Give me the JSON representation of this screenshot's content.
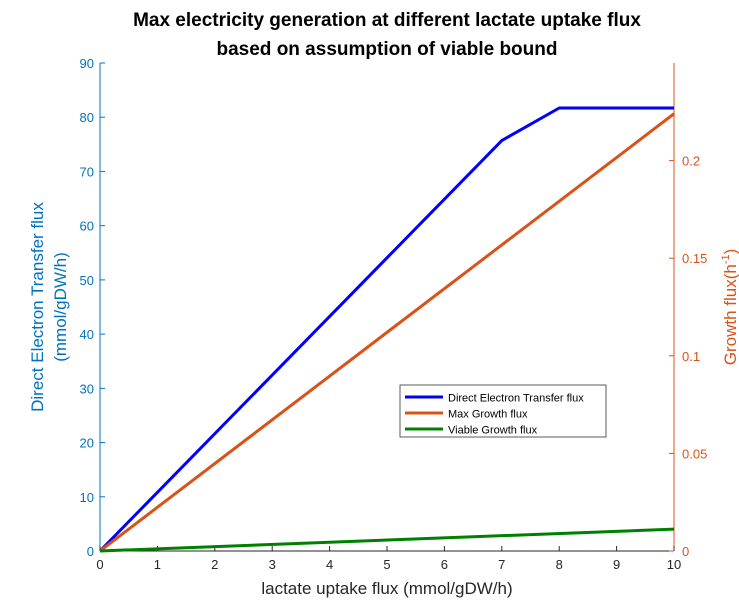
{
  "chart_data": {
    "type": "line",
    "title": [
      "Max electricity generation at different lactate uptake flux",
      "based on assumption of viable bound"
    ],
    "xlabel": "lactate uptake flux (mmol/gDW/h)",
    "ylabel_left": [
      "Direct Electron Transfer flux",
      "(mmol/gDW/h)"
    ],
    "ylabel_right": "Growth flux(h",
    "ylabel_right_sup": "-1",
    "ylabel_right_close": ")",
    "xlim": [
      0,
      10
    ],
    "ylim_left": [
      0,
      90
    ],
    "ylim_right": [
      0,
      0.25
    ],
    "xticks": [
      "0",
      "1",
      "2",
      "3",
      "4",
      "5",
      "6",
      "7",
      "8",
      "9",
      "10"
    ],
    "yticks_left": [
      "0",
      "10",
      "20",
      "30",
      "40",
      "50",
      "60",
      "70",
      "80",
      "90"
    ],
    "yticks_right": [
      "0",
      "0.05",
      "0.1",
      "0.15",
      "0.2"
    ],
    "grid": false,
    "legend_position": "center-right",
    "series": [
      {
        "name": "Direct Electron Transfer flux",
        "axis": "left",
        "color": "#0000FF",
        "x": [
          0,
          7,
          8,
          10
        ],
        "y": [
          0,
          75.7,
          81.7,
          81.7
        ]
      },
      {
        "name": "Max Growth flux",
        "axis": "right",
        "color": "#D95319",
        "x": [
          0,
          10
        ],
        "y": [
          0,
          0.224
        ]
      },
      {
        "name": "Viable Growth flux",
        "axis": "right",
        "color": "#008000",
        "x": [
          0,
          10
        ],
        "y": [
          0,
          0.0112
        ]
      }
    ],
    "colors": {
      "left_axis": "#0072BD",
      "right_axis": "#D95319",
      "x_axis": "#262626"
    }
  }
}
